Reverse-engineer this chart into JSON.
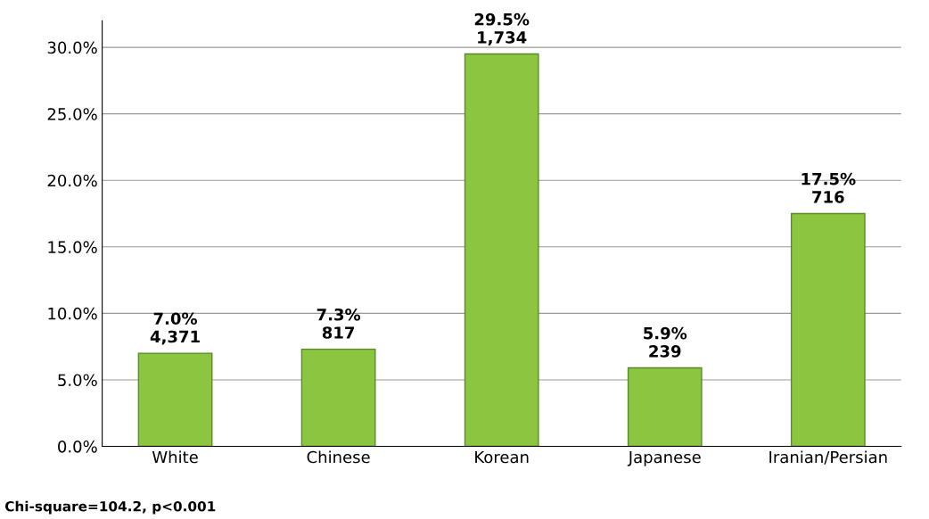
{
  "chart_data": {
    "type": "bar",
    "categories": [
      "White",
      "Chinese",
      "Korean",
      "Japanese",
      "Iranian/Persian"
    ],
    "values": [
      7.0,
      7.3,
      29.5,
      5.9,
      17.5
    ],
    "color": "#8cc540",
    "value_labels": [
      "7.0%\n4,371",
      "7.3%\n817",
      "29.5%\n1,734",
      "5.9%\n239",
      "17.5%\n716"
    ],
    "ylim": [
      0,
      32
    ],
    "yticks": [
      {
        "value": 0,
        "label": "0.0%"
      },
      {
        "value": 5,
        "label": "5.0%"
      },
      {
        "value": 10,
        "label": "10.0%"
      },
      {
        "value": 15,
        "label": "15.0%"
      },
      {
        "value": 20,
        "label": "20.0%"
      },
      {
        "value": 25,
        "label": "25.0%"
      },
      {
        "value": 30,
        "label": "30.0%"
      }
    ],
    "grid": "y",
    "legend": false,
    "annotations": [
      "Chi-square=104.2, p<0.001"
    ]
  }
}
